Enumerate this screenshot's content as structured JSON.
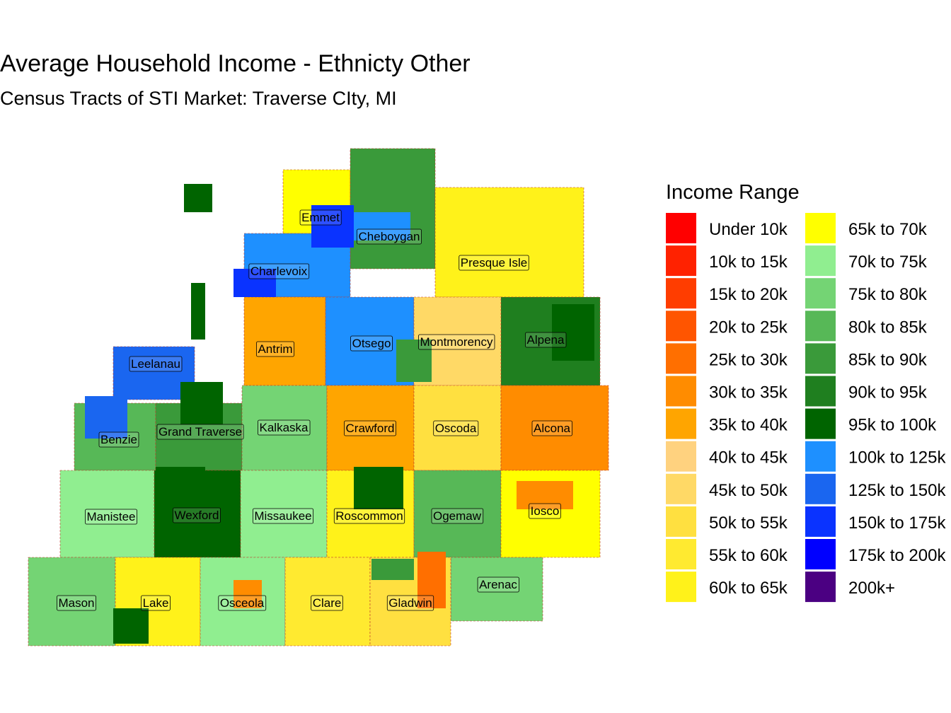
{
  "title": "Average Household Income - Ethnicty Other",
  "subtitle": "Census Tracts of STI Market: Traverse CIty, MI",
  "legend": {
    "title": "Income Range",
    "items": [
      {
        "label": "Under 10k",
        "color": "#FF0000"
      },
      {
        "label": "10k to 15k",
        "color": "#FF2200"
      },
      {
        "label": "15k to 20k",
        "color": "#FF3D00"
      },
      {
        "label": "20k to 25k",
        "color": "#FF5500"
      },
      {
        "label": "25k to 30k",
        "color": "#FF6F00"
      },
      {
        "label": "30k to 35k",
        "color": "#FF8C00"
      },
      {
        "label": "35k to 40k",
        "color": "#FFA500"
      },
      {
        "label": "40k to 45k",
        "color": "#FFD27F"
      },
      {
        "label": "45k to 50k",
        "color": "#FFD966"
      },
      {
        "label": "50k to 55k",
        "color": "#FFE040"
      },
      {
        "label": "55k to 60k",
        "color": "#FFEA30"
      },
      {
        "label": "60k to 65k",
        "color": "#FFF21A"
      },
      {
        "label": "65k to 70k",
        "color": "#FFFF00"
      },
      {
        "label": "70k to 75k",
        "color": "#90EE90"
      },
      {
        "label": "75k to 80k",
        "color": "#74D474"
      },
      {
        "label": "80k to 85k",
        "color": "#57B857"
      },
      {
        "label": "85k to 90k",
        "color": "#3A9A3A"
      },
      {
        "label": "90k to 95k",
        "color": "#1F7F1F"
      },
      {
        "label": "95k to 100k",
        "color": "#006400"
      },
      {
        "label": "100k to 125k",
        "color": "#1E90FF"
      },
      {
        "label": "125k to 150k",
        "color": "#1A66F0"
      },
      {
        "label": "150k to 175k",
        "color": "#0A33FF"
      },
      {
        "label": "175k to 200k",
        "color": "#0000FF"
      },
      {
        "label": "200k+",
        "color": "#4B0082"
      }
    ]
  },
  "counties": [
    {
      "name": "Emmet"
    },
    {
      "name": "Cheboygan"
    },
    {
      "name": "Charlevoix"
    },
    {
      "name": "Presque Isle"
    },
    {
      "name": "Antrim"
    },
    {
      "name": "Otsego"
    },
    {
      "name": "Montmorency"
    },
    {
      "name": "Alpena"
    },
    {
      "name": "Leelanau"
    },
    {
      "name": "Benzie"
    },
    {
      "name": "Grand Traverse"
    },
    {
      "name": "Kalkaska"
    },
    {
      "name": "Crawford"
    },
    {
      "name": "Oscoda"
    },
    {
      "name": "Alcona"
    },
    {
      "name": "Manistee"
    },
    {
      "name": "Wexford"
    },
    {
      "name": "Missaukee"
    },
    {
      "name": "Roscommon"
    },
    {
      "name": "Ogemaw"
    },
    {
      "name": "Iosco"
    },
    {
      "name": "Arenac"
    },
    {
      "name": "Mason"
    },
    {
      "name": "Lake"
    },
    {
      "name": "Osceola"
    },
    {
      "name": "Clare"
    },
    {
      "name": "Gladwin"
    }
  ]
}
